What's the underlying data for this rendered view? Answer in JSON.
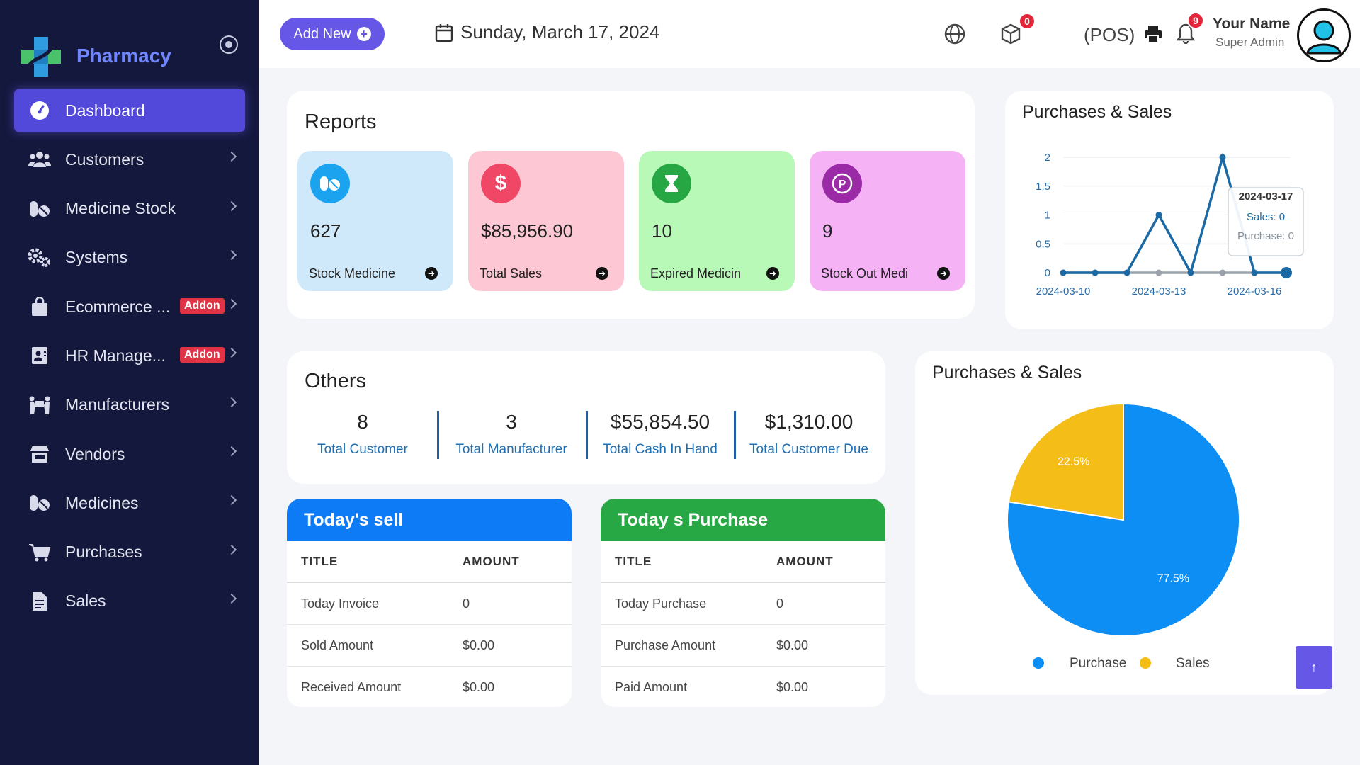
{
  "sidebar": {
    "brand": "Pharmacy",
    "items": [
      {
        "label": "Dashboard",
        "icon": "dashboard-icon",
        "active": true
      },
      {
        "label": "Customers",
        "icon": "users-icon"
      },
      {
        "label": "Medicine Stock",
        "icon": "pills-icon"
      },
      {
        "label": "Systems",
        "icon": "gears-icon"
      },
      {
        "label": "Ecommerce ...",
        "icon": "shopping-bag-icon",
        "badge": "Addon"
      },
      {
        "label": "HR Manage...",
        "icon": "id-card-icon",
        "badge": "Addon"
      },
      {
        "label": "Manufacturers",
        "icon": "people-carry-icon"
      },
      {
        "label": "Vendors",
        "icon": "store-icon"
      },
      {
        "label": "Medicines",
        "icon": "pills-icon"
      },
      {
        "label": "Purchases",
        "icon": "cart-icon"
      },
      {
        "label": "Sales",
        "icon": "file-invoice-icon"
      }
    ]
  },
  "header": {
    "add_new": "Add New",
    "date": "Sunday, March 17, 2024",
    "cube_badge": "0",
    "pos": "(POS)",
    "notif_badge": "9",
    "user_name": "Your Name",
    "user_role": "Super Admin"
  },
  "reports": {
    "title": "Reports",
    "tiles": [
      {
        "value": "627",
        "label": "Stock Medicine",
        "color": "#cfe9fb",
        "icon_color": "#1ca3f0",
        "icon": "pills-icon"
      },
      {
        "value": "$85,956.90",
        "label": "Total Sales",
        "color": "#fdc8d4",
        "icon_color": "#f04767",
        "icon": "dollar-icon"
      },
      {
        "value": "10",
        "label": "Expired Medicin",
        "color": "#b8f9b7",
        "icon_color": "#27a744",
        "icon": "hourglass-icon"
      },
      {
        "value": "9",
        "label": "Stock Out Medi",
        "color": "#f5b3f6",
        "icon_color": "#9b2aa6",
        "icon": "product-p-icon"
      }
    ]
  },
  "others": {
    "title": "Others",
    "stats": [
      {
        "value": "8",
        "label": "Total Customer"
      },
      {
        "value": "3",
        "label": "Total Manufacturer"
      },
      {
        "value": "$55,854.50",
        "label": "Total Cash In Hand"
      },
      {
        "value": "$1,310.00",
        "label": "Total Customer Due"
      }
    ]
  },
  "today_sell": {
    "title": "Today's sell",
    "col_title": "TITLE",
    "col_amount": "AMOUNT",
    "rows": [
      {
        "title": "Today Invoice",
        "amount": "0"
      },
      {
        "title": "Sold Amount",
        "amount": "$0.00"
      },
      {
        "title": "Received Amount",
        "amount": "$0.00"
      }
    ]
  },
  "today_purchase": {
    "title": "Today s Purchase",
    "col_title": "TITLE",
    "col_amount": "AMOUNT",
    "rows": [
      {
        "title": "Today Purchase",
        "amount": "0"
      },
      {
        "title": "Purchase Amount",
        "amount": "$0.00"
      },
      {
        "title": "Paid Amount",
        "amount": "$0.00"
      }
    ]
  },
  "line_card": {
    "title": "Purchases & Sales"
  },
  "pie_card": {
    "title": "Purchases & Sales"
  },
  "chart_data": [
    {
      "type": "line",
      "title": "Purchases & Sales",
      "x": [
        "2024-03-10",
        "2024-03-11",
        "2024-03-12",
        "2024-03-13",
        "2024-03-14",
        "2024-03-15",
        "2024-03-16",
        "2024-03-17"
      ],
      "x_tick_labels": [
        "2024-03-10",
        "2024-03-13",
        "2024-03-16"
      ],
      "y_ticks": [
        "0",
        "0.5",
        "1",
        "1.5",
        "2"
      ],
      "ylim": [
        0,
        2
      ],
      "grid": true,
      "series": [
        {
          "name": "Sales",
          "color": "#1b6aa5",
          "values": [
            0,
            0,
            0,
            1,
            0,
            2,
            0,
            0
          ]
        },
        {
          "name": "Purchase",
          "color": "#9aa3ab",
          "values": [
            0,
            0,
            0,
            0,
            0,
            0,
            0,
            0
          ]
        }
      ],
      "tooltip": {
        "date": "2024-03-17",
        "sales": "Sales: 0",
        "purchase": "Purchase: 0"
      }
    },
    {
      "type": "pie",
      "title": "Purchases & Sales",
      "slices": [
        {
          "name": "Purchase",
          "value": 77.5,
          "label": "77.5%",
          "color": "#0d8ef5"
        },
        {
          "name": "Sales",
          "value": 22.5,
          "label": "22.5%",
          "color": "#f5bd17"
        }
      ],
      "legend_position": "bottom"
    }
  ]
}
